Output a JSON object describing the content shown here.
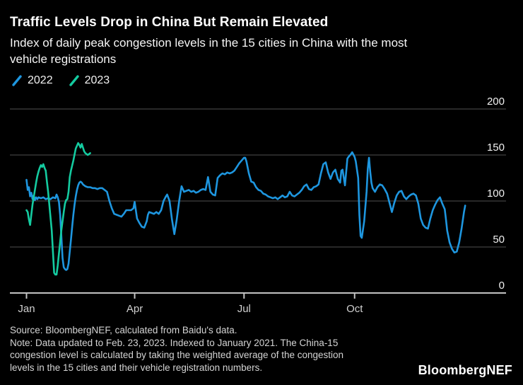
{
  "header": {
    "title": "Traffic Levels Drop in China But Remain Elevated",
    "subtitle_lines": [
      "Index of daily peak congestion levels in the 15 cities in China with the most",
      "vehicle registrations"
    ]
  },
  "legend": {
    "items": [
      {
        "label": "2022",
        "color": "#1E96DF"
      },
      {
        "label": "2023",
        "color": "#14CBA0"
      }
    ]
  },
  "chart_data": {
    "type": "line",
    "title": "Traffic Levels Drop in China But Remain Elevated",
    "xlabel": "",
    "ylabel": "",
    "x_unit": "day_of_year",
    "ylim": [
      0,
      200
    ],
    "yticks": [
      0,
      50,
      100,
      150,
      200
    ],
    "xticks": [
      {
        "label": "Jan",
        "day": 1
      },
      {
        "label": "Apr",
        "day": 91
      },
      {
        "label": "Jul",
        "day": 182
      },
      {
        "label": "Oct",
        "day": 274
      }
    ],
    "x_axis_max_day": 400,
    "grid": "horizontal",
    "legend_position": "top-left",
    "colors": {
      "background": "#000000",
      "gridline": "#4f4f4f",
      "axis": "#c2c2c2",
      "month_label": "#d0d0d0",
      "value_label": "#f0f0f0"
    },
    "series": [
      {
        "name": "2022",
        "color": "#1E96DF",
        "points": [
          [
            1,
            123
          ],
          [
            2,
            112
          ],
          [
            3,
            115
          ],
          [
            4,
            105
          ],
          [
            5,
            109
          ],
          [
            6,
            102
          ],
          [
            7,
            106
          ],
          [
            8,
            101
          ],
          [
            9,
            104
          ],
          [
            10,
            102
          ],
          [
            11,
            104
          ],
          [
            13,
            103
          ],
          [
            15,
            104
          ],
          [
            17,
            102
          ],
          [
            19,
            103
          ],
          [
            21,
            102
          ],
          [
            23,
            104
          ],
          [
            25,
            103
          ],
          [
            26,
            107
          ],
          [
            27,
            104
          ],
          [
            28,
            99
          ],
          [
            29,
            85
          ],
          [
            30,
            62
          ],
          [
            31,
            38
          ],
          [
            32,
            28
          ],
          [
            33,
            26
          ],
          [
            34,
            25
          ],
          [
            35,
            26
          ],
          [
            36,
            32
          ],
          [
            37,
            45
          ],
          [
            38,
            58
          ],
          [
            39,
            72
          ],
          [
            40,
            85
          ],
          [
            41,
            96
          ],
          [
            42,
            105
          ],
          [
            43,
            112
          ],
          [
            44,
            117
          ],
          [
            45,
            120
          ],
          [
            46,
            121
          ],
          [
            47,
            120
          ],
          [
            48,
            118
          ],
          [
            50,
            116
          ],
          [
            52,
            115
          ],
          [
            54,
            115
          ],
          [
            56,
            114
          ],
          [
            58,
            114
          ],
          [
            60,
            113
          ],
          [
            62,
            114
          ],
          [
            64,
            114
          ],
          [
            66,
            112
          ],
          [
            68,
            110
          ],
          [
            70,
            100
          ],
          [
            72,
            92
          ],
          [
            74,
            86
          ],
          [
            76,
            85
          ],
          [
            78,
            84
          ],
          [
            80,
            83
          ],
          [
            82,
            86
          ],
          [
            84,
            90
          ],
          [
            86,
            90
          ],
          [
            88,
            90
          ],
          [
            90,
            92
          ],
          [
            91,
            99
          ],
          [
            93,
            81
          ],
          [
            95,
            76
          ],
          [
            97,
            72
          ],
          [
            99,
            71
          ],
          [
            101,
            78
          ],
          [
            102,
            85
          ],
          [
            103,
            88
          ],
          [
            105,
            87
          ],
          [
            107,
            86
          ],
          [
            109,
            88
          ],
          [
            111,
            86
          ],
          [
            113,
            90
          ],
          [
            115,
            100
          ],
          [
            117,
            105
          ],
          [
            118,
            107
          ],
          [
            120,
            100
          ],
          [
            122,
            80
          ],
          [
            124,
            64
          ],
          [
            126,
            80
          ],
          [
            128,
            100
          ],
          [
            130,
            116
          ],
          [
            132,
            110
          ],
          [
            134,
            111
          ],
          [
            136,
            112
          ],
          [
            138,
            110
          ],
          [
            140,
            111
          ],
          [
            142,
            109
          ],
          [
            144,
            110
          ],
          [
            146,
            112
          ],
          [
            148,
            113
          ],
          [
            150,
            112
          ],
          [
            152,
            126
          ],
          [
            154,
            110
          ],
          [
            156,
            107
          ],
          [
            158,
            106
          ],
          [
            160,
            125
          ],
          [
            162,
            128
          ],
          [
            164,
            130
          ],
          [
            166,
            129
          ],
          [
            168,
            131
          ],
          [
            170,
            130
          ],
          [
            172,
            131
          ],
          [
            174,
            133
          ],
          [
            176,
            137
          ],
          [
            178,
            141
          ],
          [
            180,
            144
          ],
          [
            182,
            147
          ],
          [
            183,
            147
          ],
          [
            184,
            143
          ],
          [
            186,
            130
          ],
          [
            188,
            121
          ],
          [
            190,
            120
          ],
          [
            192,
            115
          ],
          [
            194,
            112
          ],
          [
            196,
            111
          ],
          [
            198,
            108
          ],
          [
            200,
            107
          ],
          [
            202,
            105
          ],
          [
            204,
            104
          ],
          [
            206,
            103
          ],
          [
            208,
            104
          ],
          [
            210,
            102
          ],
          [
            212,
            104
          ],
          [
            214,
            106
          ],
          [
            216,
            104
          ],
          [
            218,
            105
          ],
          [
            220,
            110
          ],
          [
            222,
            106
          ],
          [
            224,
            105
          ],
          [
            226,
            107
          ],
          [
            228,
            109
          ],
          [
            230,
            112
          ],
          [
            232,
            116
          ],
          [
            234,
            118
          ],
          [
            236,
            113
          ],
          [
            238,
            112
          ],
          [
            240,
            115
          ],
          [
            242,
            116
          ],
          [
            244,
            118
          ],
          [
            246,
            130
          ],
          [
            248,
            140
          ],
          [
            250,
            142
          ],
          [
            252,
            131
          ],
          [
            254,
            124
          ],
          [
            256,
            131
          ],
          [
            258,
            134
          ],
          [
            260,
            124
          ],
          [
            262,
            120
          ],
          [
            263,
            133
          ],
          [
            264,
            134
          ],
          [
            266,
            117
          ],
          [
            268,
            146
          ],
          [
            269,
            148
          ],
          [
            271,
            151
          ],
          [
            272,
            153
          ],
          [
            274,
            148
          ],
          [
            275,
            143
          ],
          [
            277,
            125
          ],
          [
            278,
            85
          ],
          [
            279,
            62
          ],
          [
            280,
            60
          ],
          [
            282,
            78
          ],
          [
            284,
            110
          ],
          [
            285,
            135
          ],
          [
            286,
            147
          ],
          [
            287,
            132
          ],
          [
            288,
            120
          ],
          [
            289,
            114
          ],
          [
            291,
            110
          ],
          [
            293,
            115
          ],
          [
            295,
            118
          ],
          [
            297,
            117
          ],
          [
            299,
            113
          ],
          [
            301,
            108
          ],
          [
            303,
            98
          ],
          [
            305,
            88
          ],
          [
            307,
            98
          ],
          [
            309,
            106
          ],
          [
            311,
            110
          ],
          [
            313,
            111
          ],
          [
            315,
            105
          ],
          [
            317,
            102
          ],
          [
            319,
            105
          ],
          [
            321,
            107
          ],
          [
            323,
            108
          ],
          [
            325,
            106
          ],
          [
            327,
            97
          ],
          [
            329,
            81
          ],
          [
            331,
            74
          ],
          [
            333,
            71
          ],
          [
            335,
            70
          ],
          [
            337,
            81
          ],
          [
            339,
            90
          ],
          [
            341,
            96
          ],
          [
            343,
            101
          ],
          [
            345,
            104
          ],
          [
            347,
            97
          ],
          [
            349,
            91
          ],
          [
            350,
            80
          ],
          [
            351,
            68
          ],
          [
            353,
            55
          ],
          [
            355,
            48
          ],
          [
            357,
            44
          ],
          [
            359,
            45
          ],
          [
            361,
            55
          ],
          [
            363,
            70
          ],
          [
            365,
            88
          ],
          [
            366,
            95
          ]
        ]
      },
      {
        "name": "2023",
        "color": "#14CBA0",
        "points": [
          [
            1,
            90
          ],
          [
            2,
            88
          ],
          [
            3,
            80
          ],
          [
            4,
            74
          ],
          [
            5,
            85
          ],
          [
            6,
            96
          ],
          [
            7,
            104
          ],
          [
            8,
            112
          ],
          [
            9,
            120
          ],
          [
            10,
            127
          ],
          [
            11,
            132
          ],
          [
            12,
            136
          ],
          [
            13,
            139
          ],
          [
            14,
            137
          ],
          [
            15,
            140
          ],
          [
            16,
            136
          ],
          [
            17,
            133
          ],
          [
            18,
            121
          ],
          [
            19,
            110
          ],
          [
            20,
            96
          ],
          [
            21,
            82
          ],
          [
            22,
            68
          ],
          [
            23,
            45
          ],
          [
            24,
            22
          ],
          [
            25,
            20
          ],
          [
            26,
            20
          ],
          [
            27,
            30
          ],
          [
            28,
            43
          ],
          [
            30,
            68
          ],
          [
            32,
            88
          ],
          [
            33,
            97
          ],
          [
            34,
            101
          ],
          [
            35,
            102
          ],
          [
            36,
            110
          ],
          [
            37,
            126
          ],
          [
            38,
            133
          ],
          [
            40,
            144
          ],
          [
            42,
            157
          ],
          [
            44,
            163
          ],
          [
            45,
            161
          ],
          [
            46,
            158
          ],
          [
            47,
            162
          ],
          [
            48,
            158
          ],
          [
            49,
            154
          ],
          [
            50,
            152
          ],
          [
            52,
            150
          ],
          [
            54,
            152
          ]
        ]
      }
    ]
  },
  "footer": {
    "lines": [
      "Source: BloombergNEF, calculated from Baidu's data.",
      "Note: Data updated to Feb. 23, 2023. Indexed to January 2021. The China-15",
      "congestion level is calculated by taking the weighted average of the congestion",
      "levels in the 15 cities and their vehicle registration numbers."
    ],
    "logo": "BloombergNEF"
  }
}
